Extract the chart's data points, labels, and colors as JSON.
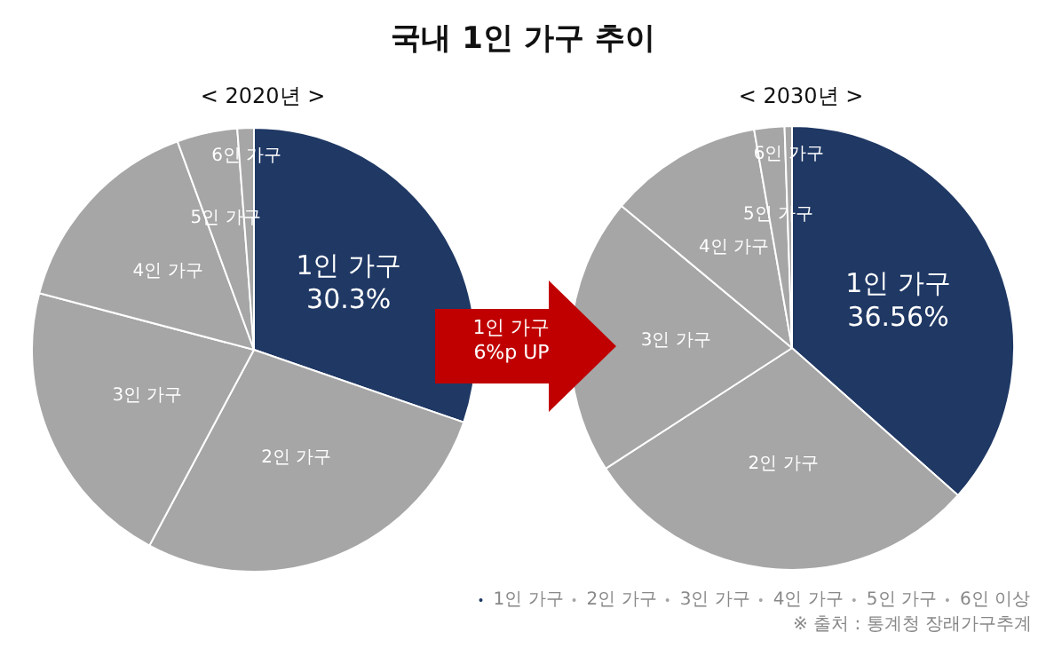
{
  "chart_data": [
    {
      "type": "pie",
      "title": "국내 1인 가구 추이",
      "subtitle": "< 2020년 >",
      "categories": [
        "1인 가구",
        "2인 가구",
        "3인 가구",
        "4인 가구",
        "5인 가구",
        "6인 가구"
      ],
      "values": [
        30.3,
        27.5,
        21.3,
        15.3,
        4.4,
        1.2
      ],
      "colors": [
        "#1f3864",
        "#a6a6a6",
        "#a6a6a6",
        "#a6a6a6",
        "#a6a6a6",
        "#a6a6a6"
      ],
      "value_labels": [
        "30.3%",
        null,
        null,
        null,
        null,
        null
      ],
      "annotations": [
        "1인 가구\n6%p UP"
      ],
      "legend": false
    },
    {
      "type": "pie",
      "title": "< 2030년 >",
      "categories": [
        "1인 가구",
        "2인 가구",
        "3인 가구",
        "4인 가구",
        "5인 가구",
        "6인 이상"
      ],
      "values": [
        36.56,
        29.3,
        20.2,
        11.2,
        2.2,
        0.54
      ],
      "colors": [
        "#1f3864",
        "#a6a6a6",
        "#a6a6a6",
        "#a6a6a6",
        "#a6a6a6",
        "#a6a6a6"
      ],
      "value_labels": [
        "36.56%",
        null,
        null,
        null,
        null,
        null
      ],
      "annotations": [
        "※ 출처 : 통계청 장래가구추계",
        {
          "text": "6인 가구",
          "x": "6인 이상"
        }
      ],
      "legend": "bottom"
    }
  ]
}
